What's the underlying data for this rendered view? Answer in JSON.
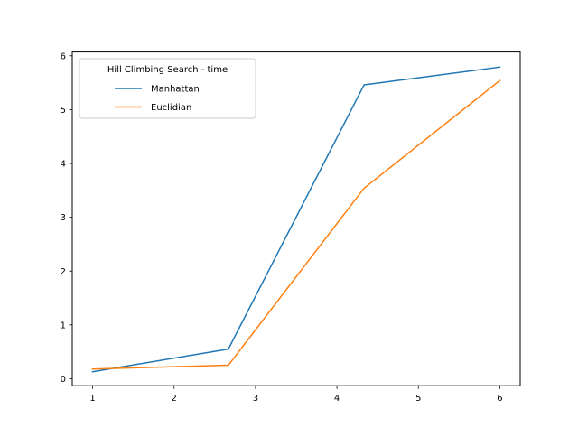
{
  "chart_data": {
    "type": "line",
    "x": [
      1,
      2.6667,
      4.3333,
      6
    ],
    "series": [
      {
        "name": "Manhattan",
        "values": [
          0.13,
          0.55,
          5.46,
          5.79
        ],
        "color": "#1f77b4"
      },
      {
        "name": "Euclidian",
        "values": [
          0.18,
          0.25,
          3.54,
          5.54
        ],
        "color": "#ff7f0e"
      }
    ],
    "legend": {
      "title": "Hill Climbing Search - time",
      "placement": "top-left"
    },
    "xlim": [
      0.75,
      6.25
    ],
    "ylim": [
      -0.13,
      6.07
    ],
    "xticks": [
      1,
      2,
      3,
      4,
      5,
      6
    ],
    "xtick_labels": [
      "1",
      "2",
      "3",
      "4",
      "5",
      "6"
    ],
    "yticks": [
      0,
      1,
      2,
      3,
      4,
      5,
      6
    ],
    "ytick_labels": [
      "0",
      "1",
      "2",
      "3",
      "4",
      "5",
      "6"
    ],
    "grid": false,
    "title": "",
    "xlabel": "",
    "ylabel": ""
  }
}
